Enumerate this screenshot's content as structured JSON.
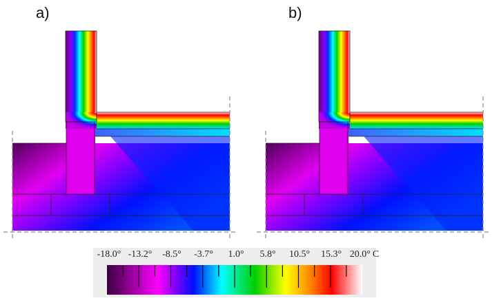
{
  "panels": [
    {
      "label": "a)"
    },
    {
      "label": "b)"
    }
  ],
  "legend": {
    "ticks": [
      "-18.0°",
      "-13.2°",
      "-8.5°",
      "-3.7°",
      "1.0°",
      "5.8°",
      "10.5°",
      "15.3°",
      "20.0°"
    ],
    "unit": "C",
    "min": -18.0,
    "max": 20.0,
    "colors": [
      "#3a0040",
      "#ff00ff",
      "#8000ff",
      "#0010ff",
      "#00ffff",
      "#00d000",
      "#ffff00",
      "#ff0000",
      "#ffffff"
    ]
  }
}
